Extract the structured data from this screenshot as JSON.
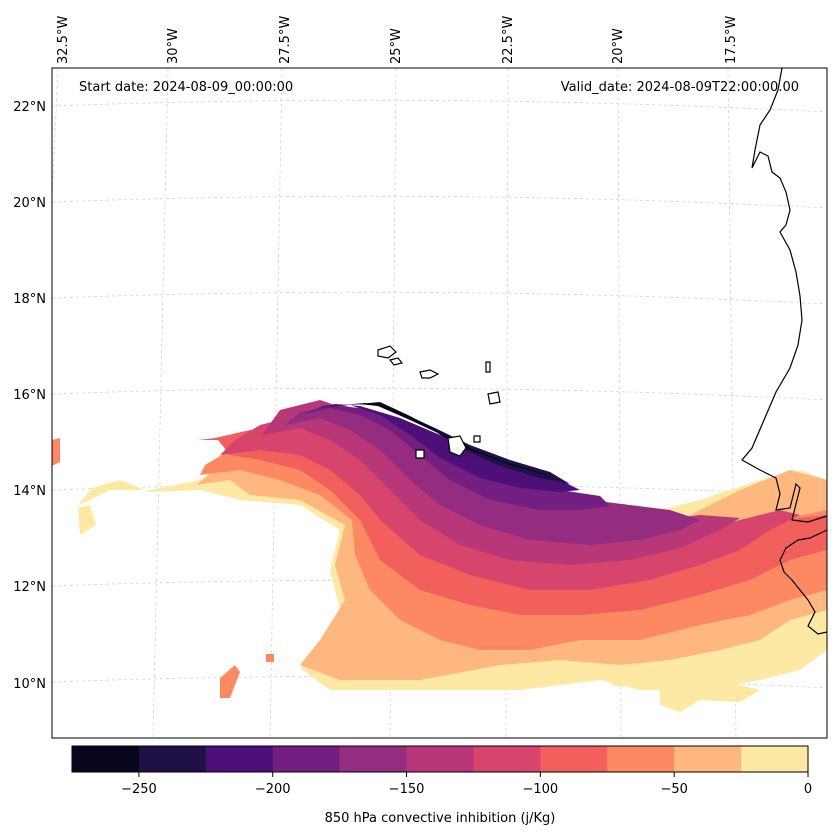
{
  "map": {
    "start_label": "Start date: 2024-08-09_00:00:00",
    "valid_label": "Valid_date: 2024-08-09T22:00:00.00",
    "lon_labels": [
      "32.5°W",
      "30°W",
      "27.5°W",
      "25°W",
      "22.5°W",
      "20°W",
      "17.5°W"
    ],
    "lat_labels": [
      "22°N",
      "20°N",
      "18°N",
      "16°N",
      "14°N",
      "12°N",
      "10°N"
    ],
    "variable": "850 hPa convective inhibition",
    "units": "j/Kg"
  },
  "colorbar": {
    "label": "850 hPa convective inhibition (j/Kg)",
    "tick_labels": [
      "−250",
      "−200",
      "−150",
      "−100",
      "−50",
      "0"
    ],
    "tick_values": [
      -250,
      -200,
      -150,
      -100,
      -50,
      0
    ],
    "range": [
      -275,
      0
    ],
    "levels": [
      -275,
      -250,
      -225,
      -200,
      -175,
      -150,
      -125,
      -100,
      -75,
      -50,
      -25,
      0
    ],
    "colors": [
      "#07061c",
      "#1f1147",
      "#4c1078",
      "#721f81",
      "#942c80",
      "#b73779",
      "#d8456c",
      "#f1605d",
      "#fc8961",
      "#feb77e",
      "#fde9a3"
    ]
  }
}
